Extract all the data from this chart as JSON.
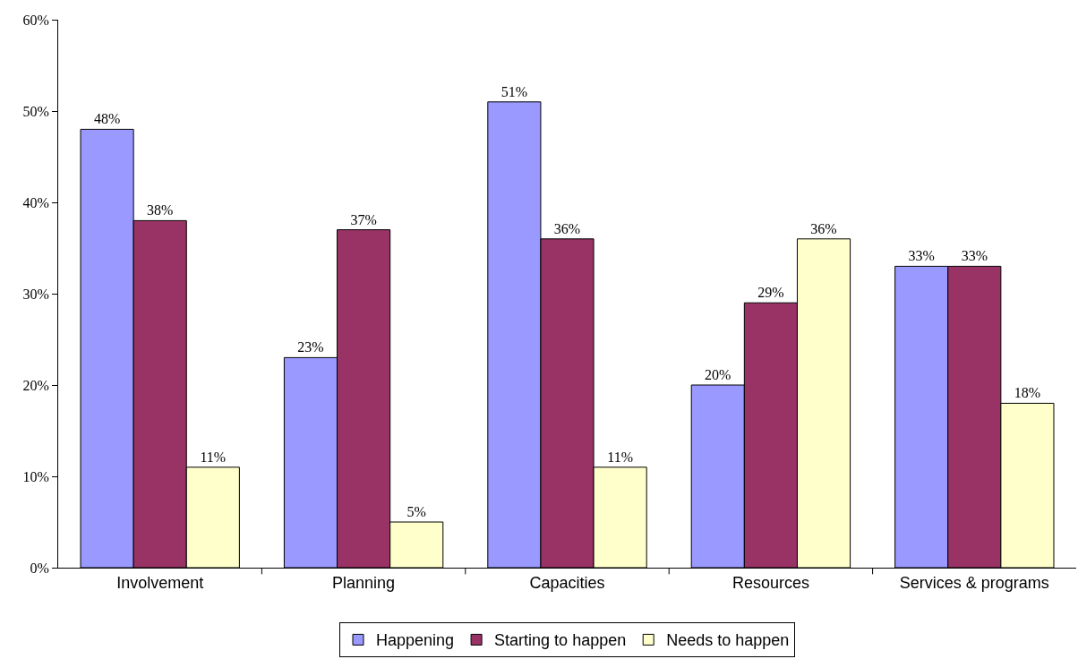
{
  "chart_data": {
    "type": "bar",
    "categories": [
      "Involvement",
      "Planning",
      "Capacities",
      "Resources",
      "Services & programs"
    ],
    "series": [
      {
        "name": "Happening",
        "color": "#9999ff",
        "values": [
          48,
          23,
          51,
          20,
          33
        ],
        "value_labels": [
          "48%",
          "23%",
          "51%",
          "20%",
          "33%"
        ]
      },
      {
        "name": "Starting to happen",
        "color": "#993366",
        "values": [
          38,
          37,
          36,
          29,
          33
        ],
        "value_labels": [
          "38%",
          "37%",
          "36%",
          "29%",
          "33%"
        ]
      },
      {
        "name": "Needs to happen",
        "color": "#ffffcc",
        "values": [
          11,
          5,
          11,
          36,
          18
        ],
        "value_labels": [
          "11%",
          "5%",
          "11%",
          "36%",
          "18%"
        ]
      }
    ],
    "ylim": [
      0,
      60
    ],
    "yticks": [
      {
        "value": 0,
        "label": "0%"
      },
      {
        "value": 10,
        "label": "10%"
      },
      {
        "value": 20,
        "label": "20%"
      },
      {
        "value": 30,
        "label": "30%"
      },
      {
        "value": 40,
        "label": "40%"
      },
      {
        "value": 50,
        "label": "50%"
      },
      {
        "value": 60,
        "label": "60%"
      }
    ],
    "grid": false,
    "legend": "bottom"
  }
}
